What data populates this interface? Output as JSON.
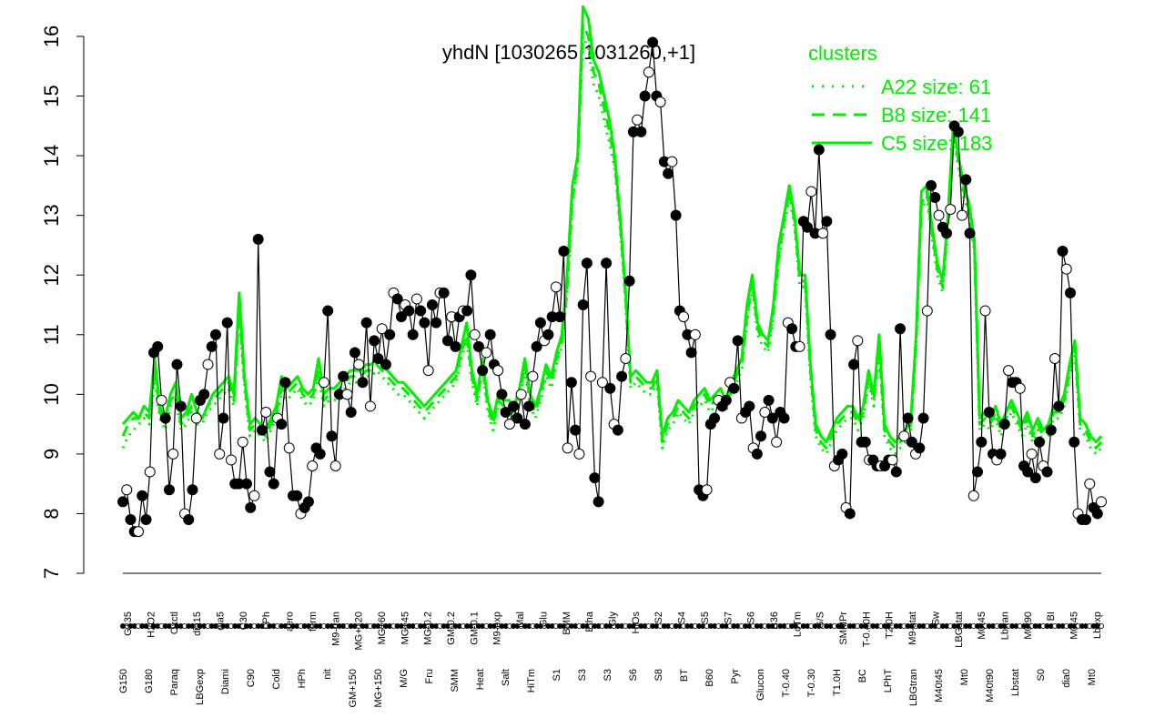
{
  "chart_data": {
    "type": "line",
    "title": "yhdN [1030265,1031260,+1]",
    "xlabel": "",
    "ylabel": "",
    "ylim": [
      7,
      16
    ],
    "yticks": [
      7,
      8,
      9,
      10,
      11,
      12,
      13,
      14,
      15,
      16
    ],
    "grid": false,
    "legend": {
      "title": "clusters",
      "position": "top-right",
      "color": "#00ee00",
      "entries": [
        {
          "label": "A22 size: 61",
          "style": "dotted"
        },
        {
          "label": "B8 size: 141",
          "style": "dashed"
        },
        {
          "label": "C5 size: 183",
          "style": "solid"
        }
      ]
    },
    "bottom_tick_labels": [
      "G150",
      "G180",
      "Paraq",
      "LBGexp",
      "Diami",
      "C90",
      "Cold",
      "HPh",
      "nit",
      "GM+150",
      "MG+150",
      "M/G",
      "Fru",
      "SMM",
      "Heat",
      "Salt",
      "HiTm",
      "S1",
      "S3",
      "S3",
      "S6",
      "S8",
      "BT",
      "B60",
      "Pyr",
      "Glucon",
      "T-0.40",
      "T-0.30",
      "T1.0H",
      "BC",
      "LPhT",
      "LBGtran",
      "M40t45",
      "Mt0",
      "M40t90",
      "Lbstat",
      "S0",
      "dia0",
      "Mt0"
    ],
    "top_tick_labels": [
      "G135",
      "H2O2",
      "Oxctl",
      "dia15",
      "dia5",
      "C30",
      "LPh",
      "aero",
      "ferm",
      "M9-tran",
      "MG+120",
      "MG+60",
      "MG+45",
      "MG-0.2",
      "GM-0.2",
      "GM-0.1",
      "M9-exp",
      "Mal",
      "Glu",
      "BMM",
      "Etha",
      "Gly",
      "HiOs",
      "S2",
      "S4",
      "S5",
      "S7",
      "S6",
      "B36",
      "LoTm",
      "G/S",
      "SMMPr",
      "T-0.40H",
      "T2.0H",
      "M9-stat",
      "Sw",
      "LBGstat",
      "M0t45",
      "Lbtran",
      "M0t90",
      "BI",
      "M0t45",
      "Lbexp"
    ],
    "series": [
      {
        "name": "",
        "color": "#000000",
        "marker": "circle",
        "values": [
          8.2,
          8.4,
          7.9,
          7.7,
          7.7,
          8.3,
          7.9,
          8.7,
          10.7,
          10.8,
          9.9,
          9.6,
          8.4,
          9.0,
          10.5,
          9.8,
          8.0,
          7.9,
          8.4,
          9.6,
          9.9,
          10.0,
          10.5,
          10.8,
          11.0,
          9.0,
          9.6,
          11.2,
          8.9,
          8.5,
          8.5,
          9.2,
          8.5,
          8.1,
          8.3,
          12.6,
          9.4,
          9.7,
          8.7,
          8.5,
          9.6,
          9.5,
          10.2,
          9.1,
          8.3,
          8.3,
          8.0,
          8.1,
          8.2,
          8.8,
          9.1,
          9.0,
          10.2,
          11.4,
          9.3,
          8.8,
          10.0,
          10.3,
          10.0,
          9.7,
          10.7,
          10.5,
          10.2,
          11.2,
          9.8,
          10.9,
          10.6,
          11.1,
          10.5,
          11.0,
          11.7,
          11.6,
          11.3,
          11.5,
          11.4,
          11.0,
          11.6,
          11.4,
          11.2,
          10.4,
          11.5,
          11.2,
          11.7,
          11.7,
          10.9,
          11.3,
          10.8,
          11.3,
          11.4,
          11.4,
          12.0,
          11.0,
          10.8,
          10.4,
          10.7,
          11.0,
          10.5,
          10.4,
          10.0,
          9.7,
          9.5,
          9.8,
          9.6,
          10.0,
          9.5,
          9.8,
          10.3,
          10.8,
          11.2,
          10.9,
          11.0,
          11.3,
          11.8,
          11.3,
          12.4,
          9.1,
          10.2,
          9.4,
          9.0,
          11.5,
          12.2,
          10.3,
          8.6,
          8.2,
          10.2,
          12.2,
          10.1,
          9.5,
          9.4,
          10.3,
          10.6,
          11.9,
          14.4,
          14.6,
          14.4,
          15.0,
          15.4,
          15.9,
          15.0,
          14.9,
          13.9,
          13.7,
          13.9,
          13.0,
          11.4,
          11.3,
          11.0,
          10.7,
          11.0,
          8.4,
          8.3,
          8.4,
          9.5,
          9.6,
          9.9,
          9.8,
          9.9,
          10.2,
          10.1,
          10.9,
          9.6,
          9.7,
          9.8,
          9.1,
          9.0,
          9.3,
          9.7,
          9.9,
          9.6,
          9.2,
          9.7,
          9.6,
          11.2,
          11.1,
          10.8,
          10.8,
          12.9,
          12.8,
          13.4,
          12.7,
          14.1,
          12.7,
          12.9,
          11.0,
          8.8,
          8.9,
          9.0,
          8.1,
          8.0,
          10.5,
          10.9,
          9.2,
          9.2,
          8.9,
          8.9,
          8.8,
          8.8,
          8.8,
          8.9,
          8.9,
          8.7,
          11.1,
          9.3,
          9.6,
          9.2,
          9.0,
          9.1,
          9.6,
          11.4,
          13.5,
          13.3,
          13.0,
          12.8,
          12.7,
          13.1,
          14.5,
          14.4,
          13.0,
          13.6,
          12.7,
          8.3,
          8.7,
          9.2,
          11.4,
          9.7,
          9.0,
          8.9,
          9.0,
          9.5,
          10.4,
          10.2,
          10.2,
          10.1,
          8.8,
          8.7,
          9.0,
          8.6,
          9.2,
          8.8,
          8.7,
          9.4,
          10.6,
          9.8,
          12.4,
          12.1,
          11.7,
          9.2,
          8.0,
          7.9,
          7.9,
          8.5,
          8.1,
          8.0,
          8.2
        ]
      },
      {
        "name": "",
        "color": "#00ee00",
        "style": "solid",
        "values": [
          9.5,
          9.6,
          9.7,
          9.6,
          9.8,
          9.7,
          10.6,
          9.8,
          9.6,
          10.0,
          10.2,
          9.6,
          9.7,
          10.0,
          9.7,
          9.6,
          9.8,
          10.0,
          10.1,
          10.2,
          10.3,
          10.0,
          11.7,
          10.3,
          9.5,
          9.6,
          9.5,
          9.4,
          9.6,
          9.8,
          10.3,
          10.1,
          10.2,
          10.3,
          10.1,
          10.0,
          10.1,
          10.6,
          10.0,
          10.1,
          10.1,
          10.2,
          10.3,
          10.4,
          10.4,
          10.4,
          10.5,
          10.5,
          10.6,
          10.5,
          10.4,
          10.3,
          10.2,
          10.2,
          10.1,
          10.0,
          9.9,
          9.8,
          9.9,
          10.0,
          10.1,
          10.2,
          10.3,
          10.4,
          10.8,
          11.2,
          10.4,
          10.0,
          10.6,
          9.9,
          9.6,
          10.0,
          9.9,
          9.9,
          9.8,
          10.1,
          10.6,
          10.0,
          9.8,
          10.1,
          10.5,
          10.3,
          10.7,
          11.0,
          12.0,
          13.5,
          14.0,
          16.5,
          16.3,
          15.6,
          15.4,
          15.0,
          14.6,
          14.0,
          13.0,
          11.8,
          10.3,
          10.4,
          10.3,
          10.2,
          10.2,
          10.4,
          9.3,
          9.6,
          9.7,
          9.9,
          9.8,
          9.7,
          9.9,
          10.0,
          10.1,
          9.9,
          10.0,
          10.1,
          9.9,
          10.2,
          10.4,
          10.6,
          11.5,
          12.0,
          11.2,
          11.0,
          10.9,
          11.5,
          12.5,
          13.0,
          13.5,
          13.0,
          12.0,
          12.0,
          10.5,
          9.5,
          9.3,
          9.2,
          9.4,
          9.6,
          9.7,
          9.8,
          9.8,
          9.6,
          9.8,
          10.4,
          10.0,
          11.0,
          9.5,
          9.3,
          9.2,
          9.3,
          9.4,
          9.6,
          11.0,
          13.4,
          13.5,
          12.8,
          12.2,
          11.9,
          13.0,
          14.5,
          14.0,
          13.5,
          13.2,
          12.6,
          9.6,
          9.7,
          9.6,
          9.8,
          9.5,
          9.7,
          9.9,
          9.7,
          9.5,
          9.7,
          9.4,
          9.6,
          9.4,
          9.5,
          9.8,
          9.8,
          10.0,
          10.5,
          10.9,
          9.6,
          9.5,
          9.3,
          9.2,
          9.3
        ]
      },
      {
        "name": "",
        "color": "#00ee00",
        "style": "dashed",
        "values": [
          9.3,
          9.5,
          9.6,
          9.6,
          9.7,
          9.6,
          10.4,
          9.7,
          9.5,
          9.9,
          10.0,
          9.5,
          9.6,
          9.8,
          9.6,
          9.6,
          9.8,
          9.9,
          10.0,
          10.1,
          10.2,
          9.9,
          11.5,
          10.2,
          9.4,
          9.5,
          9.4,
          9.3,
          9.5,
          9.7,
          10.1,
          10.0,
          10.1,
          10.2,
          10.0,
          9.9,
          10.0,
          10.4,
          9.9,
          10.0,
          10.0,
          10.1,
          10.2,
          10.3,
          10.3,
          10.3,
          10.4,
          10.4,
          10.5,
          10.4,
          10.3,
          10.2,
          10.1,
          10.1,
          10.0,
          9.9,
          9.8,
          9.7,
          9.8,
          9.9,
          10.0,
          10.1,
          10.2,
          10.3,
          10.7,
          11.0,
          10.3,
          9.9,
          10.5,
          9.8,
          9.5,
          9.9,
          9.8,
          9.8,
          9.7,
          10.0,
          10.5,
          9.9,
          9.7,
          10.0,
          10.4,
          10.2,
          10.6,
          10.9,
          11.8,
          13.3,
          13.9,
          16.2,
          16.0,
          15.4,
          15.2,
          14.8,
          14.4,
          13.9,
          12.9,
          11.7,
          10.2,
          10.3,
          10.2,
          10.1,
          10.1,
          10.3,
          9.2,
          9.5,
          9.6,
          9.8,
          9.7,
          9.6,
          9.8,
          9.9,
          10.0,
          9.8,
          9.9,
          10.0,
          9.8,
          10.1,
          10.3,
          10.5,
          11.3,
          11.9,
          11.1,
          10.9,
          10.8,
          11.4,
          12.3,
          12.9,
          13.4,
          12.9,
          11.9,
          11.9,
          10.4,
          9.4,
          9.2,
          9.1,
          9.3,
          9.5,
          9.6,
          9.7,
          9.7,
          9.5,
          9.7,
          10.3,
          9.9,
          10.8,
          9.4,
          9.2,
          9.1,
          9.2,
          9.3,
          9.5,
          10.9,
          13.2,
          13.4,
          12.7,
          12.1,
          11.8,
          12.9,
          14.4,
          13.9,
          13.4,
          13.1,
          12.5,
          9.5,
          9.6,
          9.5,
          9.7,
          9.4,
          9.6,
          9.8,
          9.6,
          9.4,
          9.6,
          9.3,
          9.5,
          9.3,
          9.4,
          9.7,
          9.7,
          9.9,
          10.4,
          10.8,
          9.5,
          9.4,
          9.2,
          9.1,
          9.2
        ]
      },
      {
        "name": "",
        "color": "#00ee00",
        "style": "dotted",
        "values": [
          9.1,
          9.3,
          9.4,
          9.5,
          9.6,
          9.5,
          10.2,
          9.6,
          9.4,
          9.8,
          9.9,
          9.4,
          9.5,
          9.7,
          9.5,
          9.5,
          9.7,
          9.8,
          9.9,
          10.0,
          10.1,
          9.8,
          11.3,
          10.1,
          9.3,
          9.4,
          9.3,
          9.2,
          9.4,
          9.6,
          10.0,
          9.9,
          10.0,
          10.1,
          9.9,
          9.8,
          9.9,
          10.3,
          9.8,
          9.9,
          9.9,
          10.0,
          10.1,
          10.2,
          10.2,
          10.2,
          10.3,
          10.3,
          10.4,
          10.3,
          10.2,
          10.1,
          10.0,
          10.0,
          9.9,
          9.8,
          9.7,
          9.6,
          9.7,
          9.8,
          9.9,
          10.0,
          10.1,
          10.2,
          10.6,
          10.9,
          10.2,
          9.8,
          10.4,
          9.7,
          9.4,
          9.8,
          9.7,
          9.7,
          9.6,
          9.9,
          10.4,
          9.8,
          9.6,
          9.9,
          10.3,
          10.1,
          10.5,
          10.8,
          11.7,
          13.2,
          13.8,
          16.0,
          15.8,
          15.2,
          15.0,
          14.6,
          14.2,
          13.8,
          12.8,
          11.6,
          10.1,
          10.2,
          10.1,
          10.0,
          10.0,
          10.2,
          9.1,
          9.4,
          9.5,
          9.7,
          9.6,
          9.5,
          9.7,
          9.8,
          9.9,
          9.7,
          9.8,
          9.9,
          9.7,
          10.0,
          10.2,
          10.4,
          11.2,
          11.8,
          11.0,
          10.8,
          10.7,
          11.3,
          12.2,
          12.8,
          13.3,
          12.8,
          11.8,
          11.8,
          10.3,
          9.3,
          9.1,
          9.0,
          9.2,
          9.4,
          9.5,
          9.6,
          9.6,
          9.4,
          9.6,
          10.2,
          9.8,
          10.7,
          9.3,
          9.1,
          9.0,
          9.1,
          9.2,
          9.4,
          10.8,
          13.1,
          13.3,
          12.6,
          12.0,
          11.7,
          12.8,
          14.3,
          13.8,
          13.3,
          13.0,
          12.4,
          9.4,
          9.5,
          9.4,
          9.6,
          9.3,
          9.5,
          9.7,
          9.5,
          9.3,
          9.5,
          9.2,
          9.4,
          9.2,
          9.3,
          9.6,
          9.6,
          9.8,
          10.3,
          10.7,
          9.4,
          9.3,
          9.1,
          9.0,
          9.1
        ]
      }
    ]
  }
}
